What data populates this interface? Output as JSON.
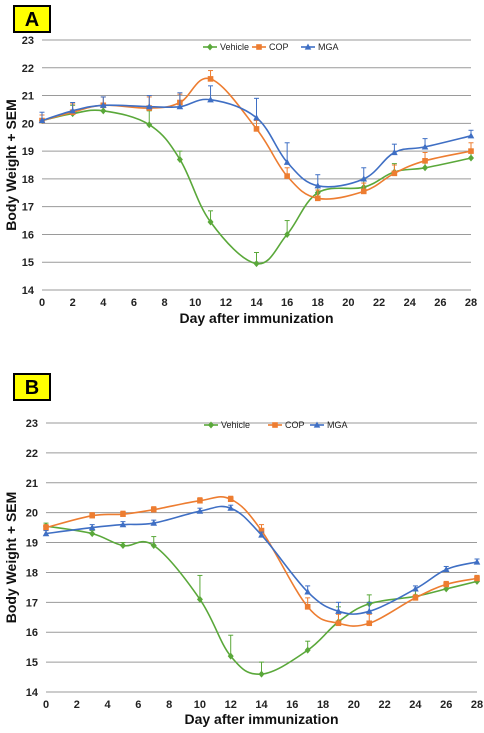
{
  "colors": {
    "vehicle": "#5aa83a",
    "cop": "#ed7d31",
    "mga": "#3f6fc4",
    "badge": "#ffff00",
    "grid": "#9a9a9a"
  },
  "chart_data": [
    {
      "panel": "A",
      "type": "line",
      "xlabel": "Day after immunization",
      "ylabel": "Body Weight + SEM",
      "xlim": [
        0,
        28
      ],
      "ylim": [
        14,
        23
      ],
      "xticks": [
        "0",
        "2",
        "4",
        "6",
        "8",
        "10",
        "12",
        "14",
        "16",
        "18",
        "20",
        "22",
        "24",
        "26",
        "28"
      ],
      "yticks": [
        "14",
        "15",
        "16",
        "17",
        "18",
        "19",
        "20",
        "21",
        "22",
        "23"
      ],
      "legend_position": "top-center",
      "grid": true,
      "series": [
        {
          "name": "Vehicle",
          "color": "#5aa83a",
          "marker": "diamond",
          "x": [
            0,
            2,
            4,
            7,
            9,
            11,
            14,
            16,
            18,
            21,
            23,
            25,
            28
          ],
          "y": [
            20.1,
            20.35,
            20.45,
            19.95,
            18.7,
            16.45,
            14.95,
            16.0,
            17.5,
            17.7,
            18.25,
            18.4,
            18.75
          ],
          "err": [
            0.2,
            0.3,
            0.2,
            0.5,
            0.3,
            0.4,
            0.4,
            0.5,
            0.2,
            0.3,
            0.3,
            0.3,
            0.3
          ]
        },
        {
          "name": "COP",
          "color": "#ed7d31",
          "marker": "square",
          "x": [
            0,
            2,
            4,
            7,
            9,
            11,
            14,
            16,
            18,
            21,
            23,
            25,
            28
          ],
          "y": [
            20.1,
            20.4,
            20.65,
            20.55,
            20.75,
            21.6,
            19.8,
            18.1,
            17.3,
            17.55,
            18.2,
            18.65,
            19.0
          ],
          "err": [
            0.2,
            0.3,
            0.3,
            0.4,
            0.3,
            0.3,
            0.3,
            0.3,
            0.3,
            0.3,
            0.3,
            0.3,
            0.3
          ]
        },
        {
          "name": "MGA",
          "color": "#3f6fc4",
          "marker": "triangle",
          "x": [
            0,
            2,
            4,
            7,
            9,
            11,
            14,
            16,
            18,
            21,
            23,
            25,
            28
          ],
          "y": [
            20.1,
            20.45,
            20.65,
            20.6,
            20.6,
            20.85,
            20.2,
            18.6,
            17.75,
            18.0,
            18.95,
            19.15,
            19.55
          ],
          "err": [
            0.3,
            0.3,
            0.3,
            0.4,
            0.5,
            0.5,
            0.7,
            0.7,
            0.4,
            0.4,
            0.3,
            0.3,
            0.2
          ]
        }
      ]
    },
    {
      "panel": "B",
      "type": "line",
      "xlabel": "Day after immunization",
      "ylabel": "Body Weight + SEM",
      "xlim": [
        0,
        28
      ],
      "ylim": [
        14,
        23
      ],
      "xticks": [
        "0",
        "2",
        "4",
        "6",
        "8",
        "10",
        "12",
        "14",
        "16",
        "18",
        "20",
        "22",
        "24",
        "26",
        "28"
      ],
      "yticks": [
        "14",
        "15",
        "16",
        "17",
        "18",
        "19",
        "20",
        "21",
        "22",
        "23"
      ],
      "legend_position": "top-center",
      "grid": true,
      "series": [
        {
          "name": "Vehicle",
          "color": "#5aa83a",
          "marker": "diamond",
          "x": [
            0,
            3,
            5,
            7,
            10,
            12,
            14,
            17,
            19,
            21,
            24,
            26,
            28
          ],
          "y": [
            19.55,
            19.3,
            18.9,
            18.9,
            17.1,
            15.2,
            14.6,
            15.4,
            16.35,
            16.95,
            17.2,
            17.45,
            17.7
          ],
          "err": [
            0.1,
            0.1,
            0.1,
            0.3,
            0.8,
            0.7,
            0.4,
            0.3,
            0.5,
            0.3,
            0.2,
            0.2,
            0.2
          ]
        },
        {
          "name": "COP",
          "color": "#ed7d31",
          "marker": "square",
          "x": [
            0,
            3,
            5,
            7,
            10,
            12,
            14,
            17,
            19,
            21,
            24,
            26,
            28
          ],
          "y": [
            19.5,
            19.9,
            19.95,
            20.1,
            20.4,
            20.45,
            19.4,
            16.85,
            16.3,
            16.3,
            17.15,
            17.6,
            17.8
          ],
          "err": [
            0.1,
            0.1,
            0.1,
            0.1,
            0.1,
            0.1,
            0.2,
            0.3,
            0.3,
            0.3,
            0.1,
            0.1,
            0.1
          ]
        },
        {
          "name": "MGA",
          "color": "#3f6fc4",
          "marker": "triangle",
          "x": [
            0,
            3,
            5,
            7,
            10,
            12,
            14,
            17,
            19,
            21,
            24,
            26,
            28
          ],
          "y": [
            19.3,
            19.5,
            19.6,
            19.65,
            20.05,
            20.15,
            19.25,
            17.35,
            16.7,
            16.7,
            17.45,
            18.1,
            18.35
          ],
          "err": [
            0.1,
            0.1,
            0.1,
            0.1,
            0.1,
            0.1,
            0.1,
            0.2,
            0.3,
            0.3,
            0.1,
            0.1,
            0.1
          ]
        }
      ]
    }
  ]
}
